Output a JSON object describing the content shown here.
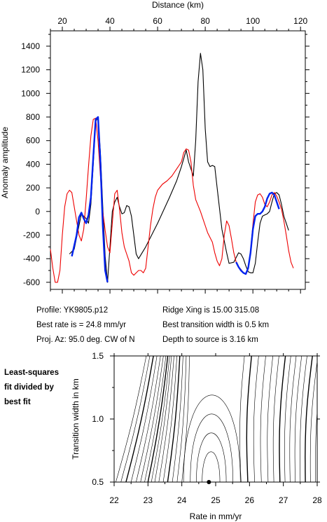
{
  "chart_data": [
    {
      "type": "line",
      "xlabel": "Distance (km)",
      "ylabel": "Anomaly amplitude",
      "xlim": [
        15,
        122
      ],
      "ylim": [
        -660,
        1530
      ],
      "x_ticks": [
        20,
        40,
        60,
        80,
        100,
        120
      ],
      "y_ticks": [
        -600,
        -400,
        -200,
        0,
        200,
        400,
        600,
        800,
        1000,
        1200,
        1400
      ],
      "grid": false,
      "series": [
        {
          "color": "#000000",
          "points": [
            [
              23,
              -360
            ],
            [
              25,
              -320
            ],
            [
              27,
              -120
            ],
            [
              28,
              -20
            ],
            [
              30,
              -60
            ],
            [
              31,
              -100
            ],
            [
              32,
              60
            ],
            [
              33,
              400
            ],
            [
              34,
              760
            ],
            [
              35,
              800
            ],
            [
              36,
              500
            ],
            [
              37,
              40
            ],
            [
              38,
              -380
            ],
            [
              39,
              -600
            ],
            [
              40,
              -300
            ],
            [
              41,
              0
            ],
            [
              42,
              80
            ],
            [
              43,
              120
            ],
            [
              44,
              40
            ],
            [
              45,
              -20
            ],
            [
              46,
              -10
            ],
            [
              47,
              50
            ],
            [
              48,
              40
            ],
            [
              49,
              -40
            ],
            [
              50,
              -200
            ],
            [
              51,
              -360
            ],
            [
              52,
              -400
            ],
            [
              55,
              -300
            ],
            [
              60,
              -100
            ],
            [
              65,
              120
            ],
            [
              68,
              260
            ],
            [
              70,
              380
            ],
            [
              72,
              520
            ],
            [
              73,
              420
            ],
            [
              74,
              360
            ],
            [
              75,
              300
            ],
            [
              76,
              600
            ],
            [
              77,
              1100
            ],
            [
              78,
              1340
            ],
            [
              79,
              1200
            ],
            [
              80,
              700
            ],
            [
              81,
              420
            ],
            [
              82,
              380
            ],
            [
              83,
              390
            ],
            [
              84,
              380
            ],
            [
              85,
              200
            ],
            [
              87,
              -150
            ],
            [
              89,
              -350
            ],
            [
              90,
              -440
            ],
            [
              92,
              -430
            ],
            [
              94,
              -350
            ],
            [
              95,
              -360
            ],
            [
              96,
              -400
            ],
            [
              97,
              -460
            ],
            [
              98,
              -510
            ],
            [
              99,
              -520
            ],
            [
              100,
              -520
            ],
            [
              101,
              -440
            ],
            [
              102,
              -260
            ],
            [
              103,
              -100
            ],
            [
              104,
              -40
            ],
            [
              105,
              -30
            ],
            [
              106,
              -20
            ],
            [
              107,
              0
            ],
            [
              108,
              80
            ],
            [
              109,
              150
            ],
            [
              110,
              160
            ],
            [
              111,
              140
            ],
            [
              112,
              60
            ],
            [
              113,
              -40
            ],
            [
              114,
              -100
            ],
            [
              115,
              -160
            ]
          ]
        },
        {
          "color": "#ee0000",
          "points": [
            [
              15,
              -320
            ],
            [
              16,
              -480
            ],
            [
              17,
              -600
            ],
            [
              18,
              -600
            ],
            [
              19,
              -500
            ],
            [
              20,
              -200
            ],
            [
              21,
              40
            ],
            [
              22,
              150
            ],
            [
              23,
              180
            ],
            [
              24,
              160
            ],
            [
              25,
              40
            ],
            [
              26,
              -80
            ],
            [
              27,
              -200
            ],
            [
              28,
              -250
            ],
            [
              29,
              -150
            ],
            [
              30,
              100
            ],
            [
              31,
              380
            ],
            [
              32,
              640
            ],
            [
              33,
              780
            ],
            [
              34,
              790
            ],
            [
              35,
              600
            ],
            [
              36,
              300
            ],
            [
              37,
              0
            ],
            [
              38,
              -160
            ],
            [
              39,
              -300
            ],
            [
              40,
              -350
            ],
            [
              41,
              -100
            ],
            [
              42,
              150
            ],
            [
              43,
              180
            ],
            [
              44,
              20
            ],
            [
              45,
              -180
            ],
            [
              46,
              -300
            ],
            [
              47,
              -360
            ],
            [
              48,
              -420
            ],
            [
              49,
              -520
            ],
            [
              50,
              -540
            ],
            [
              51,
              -520
            ],
            [
              52,
              -500
            ],
            [
              53,
              -500
            ],
            [
              54,
              -520
            ],
            [
              55,
              -480
            ],
            [
              56,
              -300
            ],
            [
              57,
              -120
            ],
            [
              58,
              20
            ],
            [
              59,
              120
            ],
            [
              60,
              180
            ],
            [
              62,
              230
            ],
            [
              64,
              260
            ],
            [
              66,
              300
            ],
            [
              68,
              360
            ],
            [
              70,
              420
            ],
            [
              71,
              500
            ],
            [
              72,
              530
            ],
            [
              73,
              520
            ],
            [
              74,
              420
            ],
            [
              75,
              220
            ],
            [
              76,
              100
            ],
            [
              78,
              0
            ],
            [
              79,
              -60
            ],
            [
              80,
              -120
            ],
            [
              81,
              -180
            ],
            [
              82,
              -220
            ],
            [
              83,
              -260
            ],
            [
              84,
              -350
            ],
            [
              85,
              -420
            ],
            [
              86,
              -460
            ],
            [
              87,
              -400
            ],
            [
              88,
              -200
            ],
            [
              89,
              -80
            ],
            [
              90,
              -120
            ],
            [
              91,
              -230
            ],
            [
              92,
              -350
            ],
            [
              93,
              -430
            ],
            [
              94,
              -470
            ],
            [
              95,
              -490
            ],
            [
              96,
              -520
            ],
            [
              97,
              -530
            ],
            [
              98,
              -490
            ],
            [
              99,
              -330
            ],
            [
              100,
              -110
            ],
            [
              101,
              80
            ],
            [
              102,
              140
            ],
            [
              103,
              150
            ],
            [
              104,
              120
            ],
            [
              105,
              60
            ],
            [
              106,
              40
            ],
            [
              107,
              80
            ],
            [
              108,
              140
            ],
            [
              109,
              160
            ],
            [
              110,
              130
            ],
            [
              111,
              80
            ],
            [
              112,
              20
            ],
            [
              113,
              -80
            ],
            [
              114,
              -200
            ],
            [
              115,
              -330
            ],
            [
              116,
              -430
            ],
            [
              117,
              -480
            ]
          ]
        },
        {
          "color": "#0022ee",
          "points": [
            [
              24,
              -380
            ],
            [
              26,
              -200
            ],
            [
              27,
              -50
            ],
            [
              28,
              -10
            ],
            [
              29,
              -60
            ],
            [
              30,
              -100
            ],
            [
              31,
              -30
            ],
            [
              32,
              120
            ],
            [
              33,
              460
            ],
            [
              34,
              780
            ],
            [
              35,
              800
            ],
            [
              36,
              420
            ],
            [
              37,
              -120
            ],
            [
              38,
              -500
            ],
            [
              39,
              -600
            ]
          ]
        },
        {
          "color": "#0022ee",
          "points": [
            [
              93,
              -430
            ],
            [
              94,
              -470
            ],
            [
              95,
              -500
            ],
            [
              96,
              -520
            ],
            [
              97,
              -530
            ],
            [
              98,
              -480
            ],
            [
              99,
              -350
            ],
            [
              100,
              -150
            ],
            [
              101,
              -40
            ],
            [
              102,
              -20
            ],
            [
              103,
              -20
            ],
            [
              104,
              0
            ],
            [
              105,
              40
            ],
            [
              106,
              110
            ],
            [
              107,
              150
            ],
            [
              108,
              160
            ],
            [
              109,
              140
            ],
            [
              110,
              80
            ],
            [
              111,
              20
            ]
          ]
        }
      ]
    },
    {
      "type": "heatmap",
      "xlabel": "Rate in mm/yr",
      "ylabel": "Transition width in km",
      "xlim": [
        22,
        28
      ],
      "ylim": [
        0.5,
        1.5
      ],
      "x_ticks": [
        22,
        23,
        24,
        25,
        26,
        27,
        28
      ],
      "y_ticks": [
        0.5,
        1.0,
        1.5
      ],
      "best_fit_point": [
        24.8,
        0.5
      ],
      "grid": false
    }
  ],
  "info": {
    "profile": "Profile: YK9805.p12",
    "best_rate": "Best rate is = 24.8 mm/yr",
    "proj_az": "Proj. Az: 95.0 deg. CW of N",
    "ridge_xing": "Ridge Xing is 15.00 315.08",
    "best_width": "Best transition width is 0.5 km",
    "depth": "Depth to source is   3.16 km"
  },
  "side_note": [
    "Least-squares",
    "fit divided by",
    "best fit"
  ]
}
